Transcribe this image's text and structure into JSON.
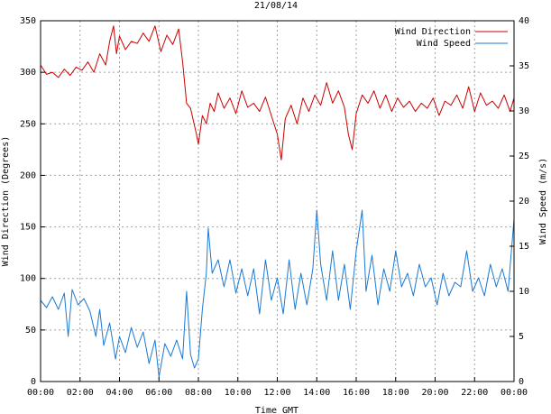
{
  "chart_data": {
    "type": "line",
    "title": "21/08/14",
    "xlabel": "Time GMT",
    "ylabel_left": "Wind Direction (Degrees)",
    "ylabel_right": "Wind Speed (m/s)",
    "x_tick_labels": [
      "00:00",
      "02:00",
      "04:00",
      "06:00",
      "08:00",
      "10:00",
      "12:00",
      "14:00",
      "16:00",
      "18:00",
      "20:00",
      "22:00",
      "00:00"
    ],
    "x_range_hours": [
      0,
      24
    ],
    "y_left_range": [
      0,
      350
    ],
    "y_left_ticks": [
      0,
      50,
      100,
      150,
      200,
      250,
      300,
      350
    ],
    "y_right_range": [
      0,
      40
    ],
    "y_right_ticks": [
      0,
      5,
      10,
      15,
      20,
      25,
      30,
      35,
      40
    ],
    "grid": true,
    "legend_position": "top-right",
    "series": [
      {
        "name": "Wind Direction",
        "axis": "left",
        "color": "#cc0000",
        "points": [
          [
            0.0,
            307
          ],
          [
            0.3,
            298
          ],
          [
            0.6,
            300
          ],
          [
            0.9,
            295
          ],
          [
            1.2,
            303
          ],
          [
            1.5,
            297
          ],
          [
            1.8,
            305
          ],
          [
            2.1,
            302
          ],
          [
            2.4,
            310
          ],
          [
            2.7,
            300
          ],
          [
            3.0,
            318
          ],
          [
            3.3,
            307
          ],
          [
            3.5,
            330
          ],
          [
            3.7,
            345
          ],
          [
            3.85,
            318
          ],
          [
            4.0,
            335
          ],
          [
            4.3,
            322
          ],
          [
            4.6,
            330
          ],
          [
            4.9,
            328
          ],
          [
            5.2,
            338
          ],
          [
            5.5,
            330
          ],
          [
            5.8,
            345
          ],
          [
            6.1,
            320
          ],
          [
            6.4,
            336
          ],
          [
            6.7,
            327
          ],
          [
            7.0,
            342
          ],
          [
            7.2,
            310
          ],
          [
            7.4,
            270
          ],
          [
            7.6,
            265
          ],
          [
            7.9,
            240
          ],
          [
            8.0,
            230
          ],
          [
            8.2,
            258
          ],
          [
            8.4,
            250
          ],
          [
            8.6,
            270
          ],
          [
            8.8,
            262
          ],
          [
            9.0,
            280
          ],
          [
            9.3,
            265
          ],
          [
            9.6,
            275
          ],
          [
            9.9,
            260
          ],
          [
            10.2,
            282
          ],
          [
            10.5,
            266
          ],
          [
            10.8,
            270
          ],
          [
            11.1,
            262
          ],
          [
            11.4,
            276
          ],
          [
            11.7,
            258
          ],
          [
            12.0,
            240
          ],
          [
            12.2,
            215
          ],
          [
            12.4,
            255
          ],
          [
            12.7,
            268
          ],
          [
            13.0,
            250
          ],
          [
            13.3,
            275
          ],
          [
            13.6,
            262
          ],
          [
            13.9,
            278
          ],
          [
            14.2,
            268
          ],
          [
            14.5,
            290
          ],
          [
            14.8,
            270
          ],
          [
            15.1,
            282
          ],
          [
            15.4,
            266
          ],
          [
            15.6,
            240
          ],
          [
            15.8,
            225
          ],
          [
            16.0,
            260
          ],
          [
            16.3,
            278
          ],
          [
            16.6,
            270
          ],
          [
            16.9,
            282
          ],
          [
            17.2,
            265
          ],
          [
            17.5,
            278
          ],
          [
            17.8,
            262
          ],
          [
            18.1,
            275
          ],
          [
            18.4,
            266
          ],
          [
            18.7,
            272
          ],
          [
            19.0,
            262
          ],
          [
            19.3,
            270
          ],
          [
            19.6,
            265
          ],
          [
            19.9,
            275
          ],
          [
            20.2,
            258
          ],
          [
            20.5,
            272
          ],
          [
            20.8,
            268
          ],
          [
            21.1,
            278
          ],
          [
            21.4,
            265
          ],
          [
            21.7,
            286
          ],
          [
            22.0,
            262
          ],
          [
            22.3,
            280
          ],
          [
            22.6,
            268
          ],
          [
            22.9,
            272
          ],
          [
            23.2,
            265
          ],
          [
            23.5,
            278
          ],
          [
            23.8,
            262
          ],
          [
            24.0,
            275
          ]
        ]
      },
      {
        "name": "Wind Speed",
        "axis": "right",
        "color": "#1a7ad4",
        "points": [
          [
            0.0,
            9.0
          ],
          [
            0.3,
            8.2
          ],
          [
            0.6,
            9.4
          ],
          [
            0.9,
            8.0
          ],
          [
            1.2,
            9.8
          ],
          [
            1.4,
            5.0
          ],
          [
            1.6,
            10.2
          ],
          [
            1.9,
            8.5
          ],
          [
            2.2,
            9.2
          ],
          [
            2.5,
            7.8
          ],
          [
            2.8,
            5.0
          ],
          [
            3.0,
            8.0
          ],
          [
            3.2,
            4.0
          ],
          [
            3.5,
            6.5
          ],
          [
            3.8,
            2.5
          ],
          [
            4.0,
            5.0
          ],
          [
            4.3,
            3.2
          ],
          [
            4.6,
            6.0
          ],
          [
            4.9,
            3.8
          ],
          [
            5.2,
            5.5
          ],
          [
            5.5,
            2.0
          ],
          [
            5.8,
            4.6
          ],
          [
            6.0,
            0.5
          ],
          [
            6.3,
            4.2
          ],
          [
            6.6,
            2.8
          ],
          [
            6.9,
            4.6
          ],
          [
            7.2,
            2.5
          ],
          [
            7.4,
            10.0
          ],
          [
            7.6,
            3.0
          ],
          [
            7.8,
            1.5
          ],
          [
            8.0,
            2.5
          ],
          [
            8.2,
            8.0
          ],
          [
            8.4,
            12.0
          ],
          [
            8.5,
            17.0
          ],
          [
            8.7,
            12.0
          ],
          [
            9.0,
            13.5
          ],
          [
            9.3,
            10.5
          ],
          [
            9.6,
            13.5
          ],
          [
            9.9,
            9.8
          ],
          [
            10.2,
            12.5
          ],
          [
            10.5,
            9.5
          ],
          [
            10.8,
            12.5
          ],
          [
            11.1,
            7.5
          ],
          [
            11.4,
            13.5
          ],
          [
            11.7,
            9.0
          ],
          [
            12.0,
            11.5
          ],
          [
            12.3,
            7.5
          ],
          [
            12.6,
            13.5
          ],
          [
            12.9,
            8.0
          ],
          [
            13.2,
            12.0
          ],
          [
            13.5,
            8.5
          ],
          [
            13.8,
            12.5
          ],
          [
            14.0,
            19.0
          ],
          [
            14.2,
            13.0
          ],
          [
            14.5,
            9.0
          ],
          [
            14.8,
            14.5
          ],
          [
            15.1,
            9.0
          ],
          [
            15.4,
            13.0
          ],
          [
            15.7,
            8.0
          ],
          [
            16.0,
            14.5
          ],
          [
            16.3,
            19.0
          ],
          [
            16.5,
            10.0
          ],
          [
            16.8,
            14.0
          ],
          [
            17.1,
            8.5
          ],
          [
            17.4,
            12.5
          ],
          [
            17.7,
            10.0
          ],
          [
            18.0,
            14.5
          ],
          [
            18.3,
            10.5
          ],
          [
            18.6,
            12.0
          ],
          [
            18.9,
            9.5
          ],
          [
            19.2,
            13.0
          ],
          [
            19.5,
            10.5
          ],
          [
            19.8,
            11.5
          ],
          [
            20.1,
            8.5
          ],
          [
            20.4,
            12.0
          ],
          [
            20.7,
            9.5
          ],
          [
            21.0,
            11.0
          ],
          [
            21.3,
            10.5
          ],
          [
            21.6,
            14.5
          ],
          [
            21.9,
            10.0
          ],
          [
            22.2,
            11.5
          ],
          [
            22.5,
            9.5
          ],
          [
            22.8,
            13.0
          ],
          [
            23.1,
            10.5
          ],
          [
            23.4,
            12.5
          ],
          [
            23.7,
            10.0
          ],
          [
            24.0,
            18.0
          ]
        ]
      }
    ]
  }
}
